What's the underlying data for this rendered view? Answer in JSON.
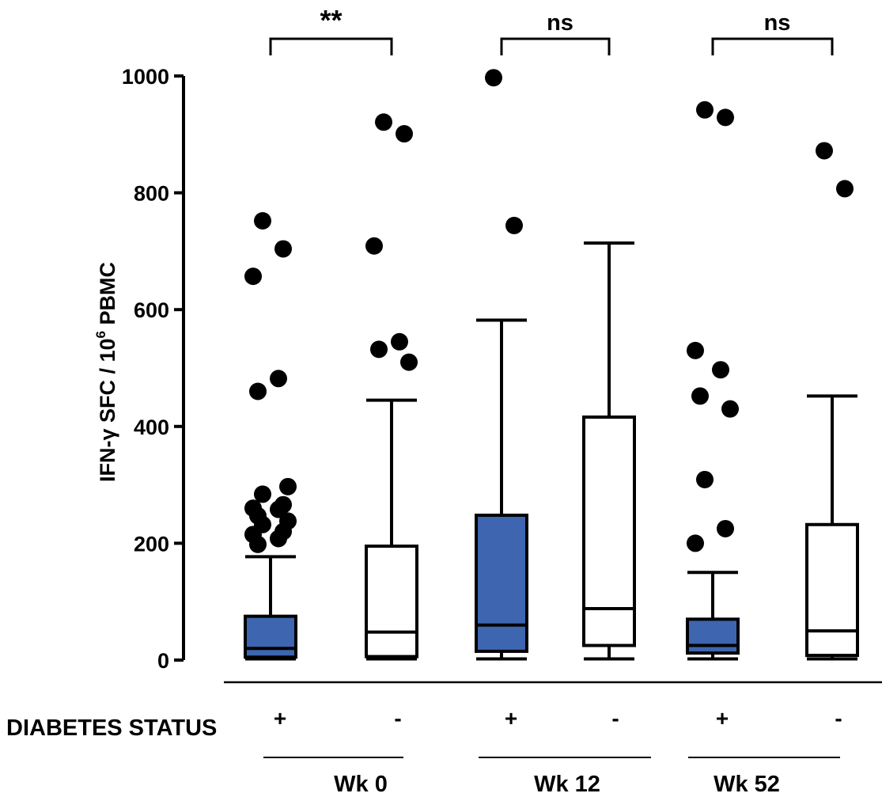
{
  "chart_data": {
    "type": "box",
    "ylabel_main": "IFN-γ SFC / 10",
    "ylabel_sup": "6",
    "ylabel_tail": " PBMC",
    "ylim": [
      0,
      1000
    ],
    "yticks": [
      "0",
      "200",
      "400",
      "600",
      "800",
      "1000"
    ],
    "row_label": "DIABETES STATUS",
    "colors": {
      "diabetic": "#3d65b0",
      "non_diabetic": "#ffffff",
      "stroke": "#000000"
    },
    "boxes": [
      {
        "status": "+",
        "filled": true,
        "whisker_low": 2,
        "q1": 5,
        "median": 20,
        "q3": 75,
        "whisker_high": 177,
        "outliers": [
          752,
          704,
          657,
          482,
          460,
          297,
          284,
          266,
          260,
          258,
          247,
          238,
          232,
          220,
          215,
          208,
          198
        ]
      },
      {
        "status": "-",
        "filled": false,
        "whisker_low": 2,
        "q1": 6,
        "median": 48,
        "q3": 195,
        "whisker_high": 445,
        "outliers": [
          921,
          901,
          709,
          545,
          532,
          510
        ]
      },
      {
        "status": "+",
        "filled": true,
        "whisker_low": 2,
        "q1": 15,
        "median": 60,
        "q3": 248,
        "whisker_high": 582,
        "outliers": [
          997,
          744
        ]
      },
      {
        "status": "-",
        "filled": false,
        "whisker_low": 2,
        "q1": 25,
        "median": 88,
        "q3": 416,
        "whisker_high": 714,
        "outliers": []
      },
      {
        "status": "+",
        "filled": true,
        "whisker_low": 2,
        "q1": 12,
        "median": 25,
        "q3": 70,
        "whisker_high": 150,
        "outliers": [
          942,
          929,
          530,
          497,
          452,
          430,
          309,
          225,
          200
        ]
      },
      {
        "status": "-",
        "filled": false,
        "whisker_low": 2,
        "q1": 8,
        "median": 50,
        "q3": 232,
        "whisker_high": 452,
        "outliers": [
          872,
          807
        ]
      }
    ],
    "groups": [
      {
        "label": "Wk 0",
        "significance": "**"
      },
      {
        "label": "Wk 12",
        "significance": "ns"
      },
      {
        "label": "Wk 52",
        "significance": "ns"
      }
    ]
  }
}
